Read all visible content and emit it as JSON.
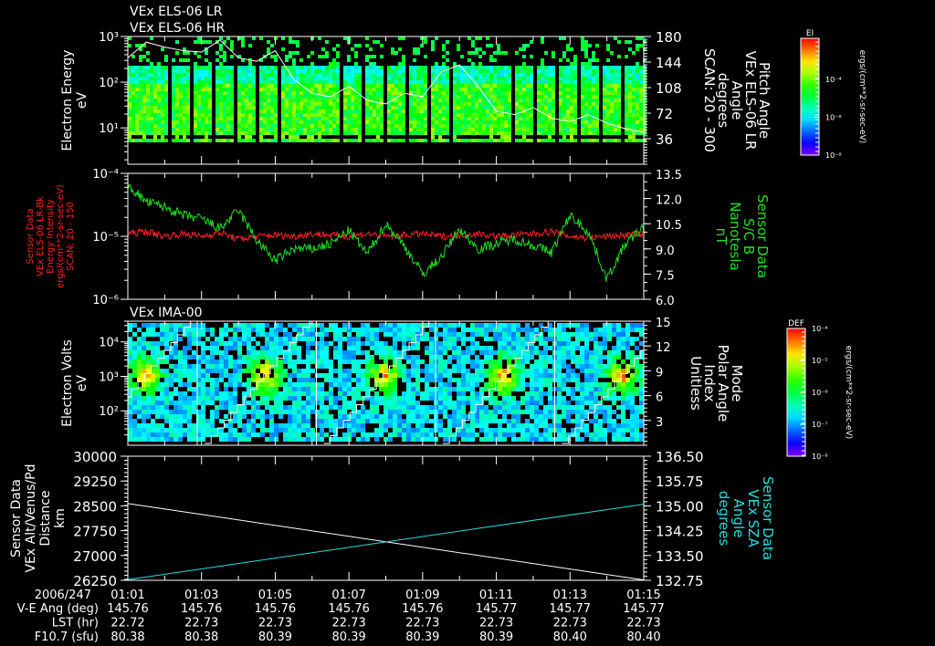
{
  "titles": {
    "p1a": "VEx ELS-06 LR",
    "p1b": "VEx ELS-06 HR",
    "p3": "VEx IMA-00"
  },
  "colors": {
    "fg": "#ffffff",
    "red": "#ff2020",
    "green": "#20e020",
    "cyan": "#20e0e0"
  },
  "chart_data": [
    {
      "type": "heatmap",
      "name": "electron-spectrogram",
      "ylabel": [
        "Electron Energy",
        "eV"
      ],
      "yscale": "log",
      "ylim": [
        1.6,
        1000
      ],
      "yticks": [
        {
          "v": 1000,
          "l": "10³"
        },
        {
          "v": 100,
          "l": "10²"
        },
        {
          "v": 10,
          "l": "10¹"
        }
      ],
      "y2label": [
        "Pitch Angle",
        "VEx ELS-06 LR",
        "Angle",
        "degrees",
        "SCAN: 20 - 300"
      ],
      "y2lim": [
        0,
        180
      ],
      "y2ticks": [
        "180",
        "144",
        "108",
        "72",
        "36"
      ],
      "colorbar": {
        "title": "EI",
        "labels": [
          "10⁻⁴",
          "10⁻⁶",
          "10⁻⁸"
        ],
        "units": "ergs/(cm**2-sr-sec-eV)"
      },
      "pitch_angle_series": [
        150,
        172,
        165,
        160,
        158,
        175,
        150,
        145,
        160,
        120,
        100,
        95,
        110,
        90,
        85,
        100,
        95,
        130,
        140,
        110,
        75,
        70,
        80,
        65,
        60,
        70,
        58,
        50,
        45
      ]
    },
    {
      "type": "line",
      "name": "energy-intensity-and-field",
      "ylabel": [
        "Sensor Data",
        "VEx ELS-06 LR-Bk",
        "Energy Intensity",
        "ergs/(cm**2-sr-sec-eV)",
        "SCAN: 20 - 150"
      ],
      "yscale": "log",
      "ylim": [
        1e-06,
        0.0001
      ],
      "yticks": [
        {
          "v": 0.0001,
          "l": "10⁻⁴"
        },
        {
          "v": 1e-05,
          "l": "10⁻⁵"
        },
        {
          "v": 1e-06,
          "l": "10⁻⁶"
        }
      ],
      "y2label": [
        "Sensor Data",
        "S/C B",
        "Nanotesla",
        "nT"
      ],
      "y2lim": [
        6.0,
        13.5
      ],
      "y2ticks": [
        "13.5",
        "12.0",
        "10.5",
        "9.0",
        "7.5",
        "6.0"
      ],
      "series": [
        {
          "name": "Energy Intensity",
          "color": "red",
          "axis": "left",
          "values": [
            1.1e-05,
            1.2e-05,
            1e-05,
            1.1e-05,
            1e-05,
            1.15e-05,
            9e-06,
            1e-05,
            1.05e-05,
            1e-05,
            1.1e-05,
            1.05e-05,
            1e-05,
            1.1e-05,
            1e-05,
            1.05e-05,
            1.1e-05,
            1e-05,
            1.05e-05,
            1.1e-05,
            1e-05,
            1.05e-05,
            1.1e-05,
            1.2e-05,
            1e-05,
            9.5e-06,
            1e-05,
            1.05e-05,
            1.1e-05
          ]
        },
        {
          "name": "S/C B",
          "color": "green",
          "axis": "right",
          "values": [
            12.8,
            11.8,
            11.5,
            11.0,
            10.8,
            10.2,
            11.3,
            9.5,
            8.3,
            9.0,
            9.0,
            9.3,
            10.1,
            8.7,
            10.5,
            9.2,
            7.5,
            8.5,
            10.2,
            9.0,
            9.3,
            9.6,
            9.2,
            8.8,
            11.0,
            10.0,
            7.2,
            9.3,
            10.3
          ]
        }
      ]
    },
    {
      "type": "heatmap",
      "name": "ion-spectrogram",
      "ylabel": [
        "Electron Volts",
        "eV"
      ],
      "yscale": "log",
      "ylim": [
        10,
        40000
      ],
      "yticks": [
        {
          "v": 10000,
          "l": "10⁴"
        },
        {
          "v": 1000,
          "l": "10³"
        },
        {
          "v": 100,
          "l": "10²"
        }
      ],
      "y2label": [
        "Mode",
        "Polar Angle",
        "Index",
        "Unitless"
      ],
      "y2lim": [
        0,
        15
      ],
      "y2ticks": [
        "15",
        "12",
        "9",
        "6",
        "3"
      ],
      "colorbar": {
        "title": "DEF",
        "labels": [
          "10⁻⁴",
          "10⁻⁵",
          "10⁻⁶",
          "10⁻⁷",
          "10⁻⁸"
        ],
        "units": "ergs/(cm**2-sr-sec-eV)"
      }
    },
    {
      "type": "line",
      "name": "distance-and-sza",
      "ylabel": [
        "Sensor Data",
        "VEx Alt/Venus/Pd",
        "Distance",
        "km"
      ],
      "ylim": [
        26250,
        30000
      ],
      "yticks": [
        "30000",
        "29250",
        "28500",
        "27750",
        "27000",
        "26250"
      ],
      "y2label": [
        "Sensor Data",
        "VEx SZA",
        "Angle",
        "degrees"
      ],
      "y2lim": [
        132.75,
        136.5
      ],
      "y2ticks": [
        "136.50",
        "135.75",
        "135.00",
        "134.25",
        "133.50",
        "132.75"
      ],
      "series": [
        {
          "name": "Distance",
          "color": "white",
          "axis": "left",
          "x": [
            0,
            14
          ],
          "values": [
            28570,
            26260
          ]
        },
        {
          "name": "SZA",
          "color": "cyan",
          "axis": "right",
          "x": [
            0,
            14
          ],
          "values": [
            132.77,
            135.05
          ]
        }
      ]
    }
  ],
  "time_axis": {
    "date": "2006/247",
    "ticks": [
      "01:01",
      "01:03",
      "01:05",
      "01:07",
      "01:09",
      "01:11",
      "01:13",
      "01:15"
    ],
    "rows": [
      {
        "label": "V-E Ang (deg)",
        "values": [
          "145.76",
          "145.76",
          "145.76",
          "145.76",
          "145.76",
          "145.77",
          "145.77",
          "145.77"
        ]
      },
      {
        "label": "LST (hr)",
        "values": [
          "22.72",
          "22.73",
          "22.73",
          "22.73",
          "22.73",
          "22.73",
          "22.73",
          "22.73"
        ]
      },
      {
        "label": "F10.7 (sfu)",
        "values": [
          "80.38",
          "80.38",
          "80.39",
          "80.39",
          "80.39",
          "80.39",
          "80.40",
          "80.40"
        ]
      }
    ]
  }
}
